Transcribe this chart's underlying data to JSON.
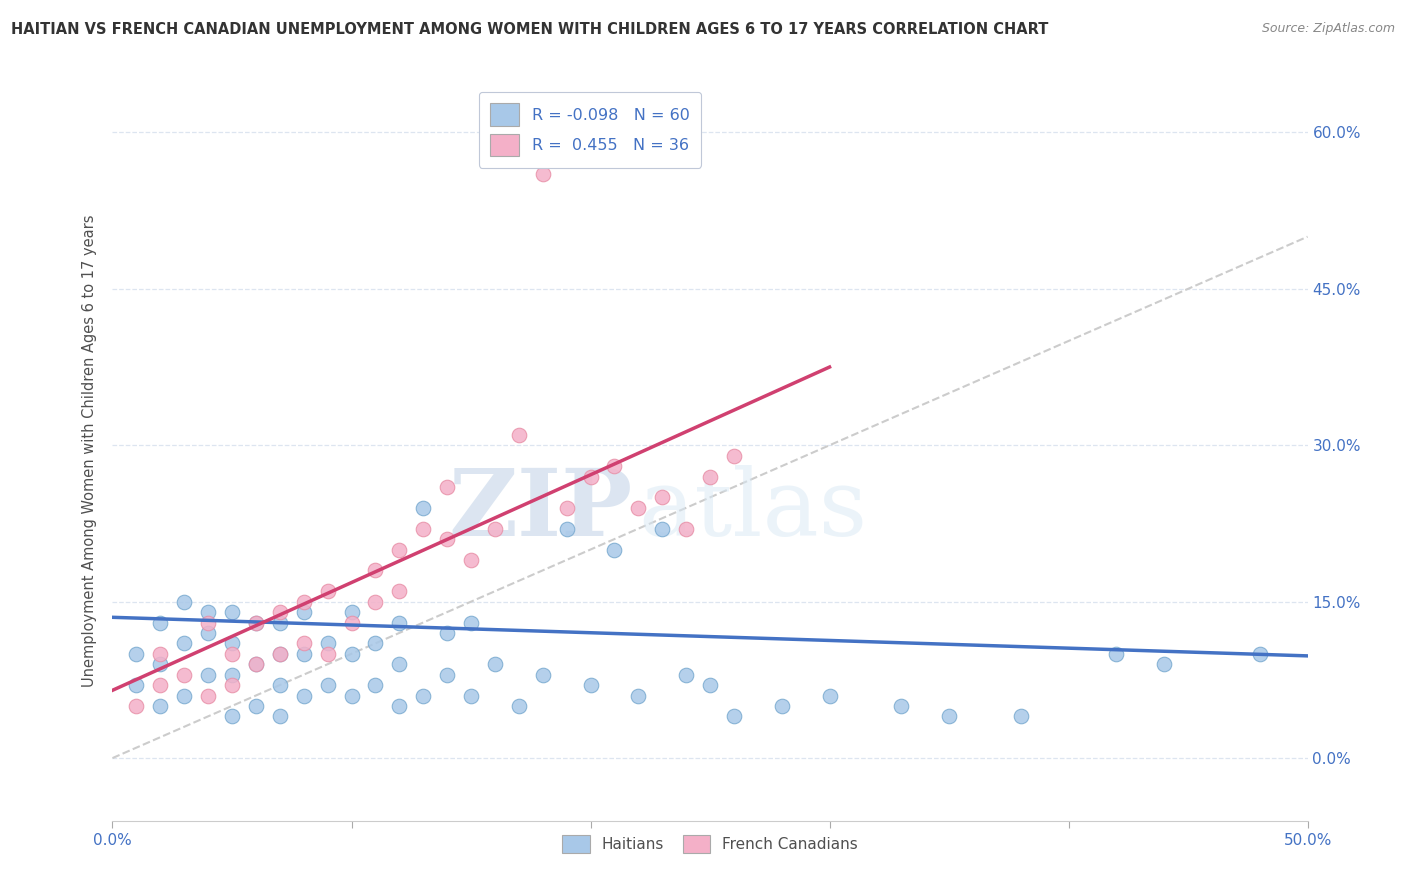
{
  "title": "HAITIAN VS FRENCH CANADIAN UNEMPLOYMENT AMONG WOMEN WITH CHILDREN AGES 6 TO 17 YEARS CORRELATION CHART",
  "source": "Source: ZipAtlas.com",
  "ylabel": "Unemployment Among Women with Children Ages 6 to 17 years",
  "xmin": 0.0,
  "xmax": 0.5,
  "ymin": -0.06,
  "ymax": 0.65,
  "yticks": [
    0.0,
    0.15,
    0.3,
    0.45,
    0.6
  ],
  "ytick_labels": [
    "0.0%",
    "15.0%",
    "30.0%",
    "45.0%",
    "60.0%"
  ],
  "haitians_color": "#a8c8e8",
  "french_canadians_color": "#f4b0c8",
  "haitians_edge_color": "#7aaad0",
  "french_edge_color": "#e890a8",
  "trendline_haitians_color": "#4472c4",
  "trendline_french_color": "#d04070",
  "diagonal_color": "#cccccc",
  "watermark_zip": "ZIP",
  "watermark_atlas": "atlas",
  "background_color": "#ffffff",
  "grid_color": "#dde5f0",
  "title_color": "#333333",
  "axis_label_color": "#4472c4",
  "source_color": "#888888",
  "R_haitians": -0.098,
  "N_haitians": 60,
  "R_french": 0.455,
  "N_french": 36,
  "haitians_x": [
    0.01,
    0.01,
    0.02,
    0.02,
    0.02,
    0.03,
    0.03,
    0.03,
    0.04,
    0.04,
    0.04,
    0.05,
    0.05,
    0.05,
    0.05,
    0.06,
    0.06,
    0.06,
    0.07,
    0.07,
    0.07,
    0.07,
    0.08,
    0.08,
    0.08,
    0.09,
    0.09,
    0.1,
    0.1,
    0.1,
    0.11,
    0.11,
    0.12,
    0.12,
    0.12,
    0.13,
    0.13,
    0.14,
    0.14,
    0.15,
    0.15,
    0.16,
    0.17,
    0.18,
    0.19,
    0.2,
    0.21,
    0.22,
    0.23,
    0.24,
    0.25,
    0.26,
    0.28,
    0.3,
    0.33,
    0.35,
    0.38,
    0.42,
    0.44,
    0.48
  ],
  "haitians_y": [
    0.07,
    0.1,
    0.05,
    0.09,
    0.13,
    0.06,
    0.11,
    0.15,
    0.08,
    0.12,
    0.14,
    0.04,
    0.08,
    0.11,
    0.14,
    0.05,
    0.09,
    0.13,
    0.04,
    0.07,
    0.1,
    0.13,
    0.06,
    0.1,
    0.14,
    0.07,
    0.11,
    0.06,
    0.1,
    0.14,
    0.07,
    0.11,
    0.05,
    0.09,
    0.13,
    0.06,
    0.24,
    0.08,
    0.12,
    0.06,
    0.13,
    0.09,
    0.05,
    0.08,
    0.22,
    0.07,
    0.2,
    0.06,
    0.22,
    0.08,
    0.07,
    0.04,
    0.05,
    0.06,
    0.05,
    0.04,
    0.04,
    0.1,
    0.09,
    0.1
  ],
  "french_x": [
    0.01,
    0.02,
    0.02,
    0.03,
    0.04,
    0.04,
    0.05,
    0.05,
    0.06,
    0.06,
    0.07,
    0.07,
    0.08,
    0.08,
    0.09,
    0.09,
    0.1,
    0.11,
    0.11,
    0.12,
    0.12,
    0.13,
    0.14,
    0.14,
    0.15,
    0.16,
    0.17,
    0.18,
    0.19,
    0.2,
    0.21,
    0.22,
    0.23,
    0.24,
    0.25,
    0.26
  ],
  "french_y": [
    0.05,
    0.07,
    0.1,
    0.08,
    0.06,
    0.13,
    0.07,
    0.1,
    0.09,
    0.13,
    0.1,
    0.14,
    0.11,
    0.15,
    0.1,
    0.16,
    0.13,
    0.15,
    0.18,
    0.16,
    0.2,
    0.22,
    0.21,
    0.26,
    0.19,
    0.22,
    0.31,
    0.56,
    0.24,
    0.27,
    0.28,
    0.24,
    0.25,
    0.22,
    0.27,
    0.29
  ],
  "trendline_h_x0": 0.0,
  "trendline_h_x1": 0.5,
  "trendline_h_y0": 0.135,
  "trendline_h_y1": 0.098,
  "trendline_f_x0": 0.0,
  "trendline_f_x1": 0.3,
  "trendline_f_y0": 0.065,
  "trendline_f_y1": 0.375
}
